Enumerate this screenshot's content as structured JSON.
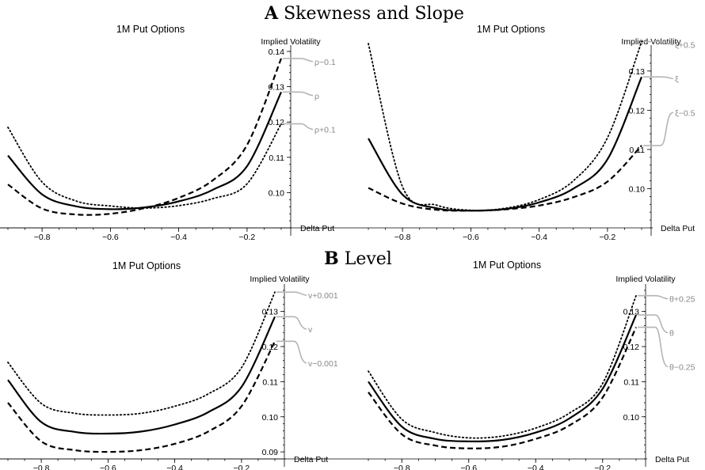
{
  "figure": {
    "section_a_letter": "A",
    "section_a_title": "Skewness and Slope",
    "section_b_letter": "B",
    "section_b_title": "Level"
  },
  "chart_data": [
    {
      "type": "line",
      "section": "A",
      "title": "1M Put Options",
      "xlabel": "Delta Put",
      "ylabel": "Implied Volatility",
      "xlim": [
        -0.9,
        -0.1
      ],
      "ylim": [
        0.09,
        0.14
      ],
      "xticks": [
        -0.8,
        -0.6,
        -0.4,
        -0.2
      ],
      "xtick_labels": [
        "−0.8",
        "−0.6",
        "−0.4",
        "−0.2"
      ],
      "yticks": [
        0.1,
        0.11,
        0.12,
        0.13,
        0.14
      ],
      "ytick_labels": [
        "0.10",
        "0.11",
        "0.12",
        "0.13",
        "0.14"
      ],
      "grid": false,
      "x": [
        -0.9,
        -0.8,
        -0.7,
        -0.6,
        -0.5,
        -0.4,
        -0.3,
        -0.2,
        -0.1
      ],
      "series": [
        {
          "name": "ρ−0.1",
          "style": "dashed",
          "values": [
            0.1023,
            0.0955,
            0.0938,
            0.094,
            0.0956,
            0.0985,
            0.1035,
            0.1135,
            0.138
          ]
        },
        {
          "name": "ρ",
          "style": "solid",
          "values": [
            0.1105,
            0.0995,
            0.0961,
            0.0953,
            0.0958,
            0.0975,
            0.1008,
            0.1075,
            0.1285
          ]
        },
        {
          "name": "ρ+0.1",
          "style": "dotted",
          "values": [
            0.1185,
            0.103,
            0.0976,
            0.0962,
            0.0956,
            0.0963,
            0.0983,
            0.1025,
            0.1195
          ]
        }
      ]
    },
    {
      "type": "line",
      "section": "A",
      "title": "1M Put Options",
      "xlabel": "Delta Put",
      "ylabel": "Implied Volatility",
      "xlim": [
        -0.9,
        -0.1
      ],
      "ylim": [
        0.09,
        0.135
      ],
      "xticks": [
        -0.8,
        -0.6,
        -0.4,
        -0.2
      ],
      "xtick_labels": [
        "−0.8",
        "−0.6",
        "−0.4",
        "−0.2"
      ],
      "yticks": [
        0.1,
        0.11,
        0.12,
        0.13
      ],
      "ytick_labels": [
        "0.10",
        "0.11",
        "0.12",
        "0.13"
      ],
      "grid": false,
      "x": [
        -0.9,
        -0.8,
        -0.7,
        -0.6,
        -0.5,
        -0.4,
        -0.3,
        -0.2,
        -0.1
      ],
      "series": [
        {
          "name": "ξ+0.5",
          "style": "dotted",
          "values": [
            0.137,
            0.1005,
            0.0958,
            0.0945,
            0.095,
            0.0972,
            0.102,
            0.113,
            0.1375
          ]
        },
        {
          "name": "ξ",
          "style": "solid",
          "values": [
            0.1128,
            0.0985,
            0.095,
            0.0944,
            0.0948,
            0.0965,
            0.1,
            0.1075,
            0.1285
          ]
        },
        {
          "name": "ξ−0.5",
          "style": "dashed",
          "values": [
            0.1002,
            0.0962,
            0.0946,
            0.0944,
            0.0947,
            0.0957,
            0.0978,
            0.1018,
            0.111
          ]
        }
      ]
    },
    {
      "type": "line",
      "section": "B",
      "title": "1M Put Options",
      "xlabel": "Delta Put",
      "ylabel": "Implied Volatility",
      "xlim": [
        -0.9,
        -0.1
      ],
      "ylim": [
        0.088,
        0.136
      ],
      "xticks": [
        -0.8,
        -0.6,
        -0.4,
        -0.2
      ],
      "xtick_labels": [
        "−0.8",
        "−0.6",
        "−0.4",
        "−0.2"
      ],
      "yticks": [
        0.09,
        0.1,
        0.11,
        0.12,
        0.13
      ],
      "ytick_labels": [
        "0.09",
        "0.10",
        "0.11",
        "0.12",
        "0.13"
      ],
      "grid": false,
      "x": [
        -0.9,
        -0.8,
        -0.7,
        -0.6,
        -0.5,
        -0.4,
        -0.3,
        -0.2,
        -0.1
      ],
      "series": [
        {
          "name": "v+0.001",
          "style": "dotted",
          "values": [
            0.1155,
            0.1038,
            0.101,
            0.1005,
            0.101,
            0.103,
            0.1065,
            0.114,
            0.1355
          ]
        },
        {
          "name": "v",
          "style": "solid",
          "values": [
            0.1105,
            0.0985,
            0.0957,
            0.0952,
            0.0958,
            0.0978,
            0.1013,
            0.1085,
            0.1285
          ]
        },
        {
          "name": "v−0.001",
          "style": "dashed",
          "values": [
            0.104,
            0.093,
            0.0905,
            0.09,
            0.0905,
            0.0923,
            0.0958,
            0.103,
            0.1215
          ]
        }
      ]
    },
    {
      "type": "line",
      "section": "B",
      "title": "1M Put Options",
      "xlabel": "Delta Put",
      "ylabel": "Implied Volatility",
      "xlim": [
        -0.9,
        -0.1
      ],
      "ylim": [
        0.088,
        0.136
      ],
      "xticks": [
        -0.8,
        -0.6,
        -0.4,
        -0.2
      ],
      "xtick_labels": [
        "−0.8",
        "−0.6",
        "−0.4",
        "−0.2"
      ],
      "yticks": [
        0.1,
        0.11,
        0.12,
        0.13
      ],
      "ytick_labels": [
        "0.10",
        "0.11",
        "0.12",
        "0.13"
      ],
      "grid": false,
      "x": [
        -0.9,
        -0.8,
        -0.7,
        -0.6,
        -0.5,
        -0.4,
        -0.3,
        -0.2,
        -0.1
      ],
      "series": [
        {
          "name": "θ+0.25",
          "style": "dotted",
          "values": [
            0.113,
            0.0993,
            0.0955,
            0.094,
            0.0945,
            0.0968,
            0.101,
            0.1095,
            0.1345
          ]
        },
        {
          "name": "θ",
          "style": "solid",
          "values": [
            0.11,
            0.0972,
            0.0937,
            0.093,
            0.0934,
            0.0955,
            0.0995,
            0.108,
            0.129
          ]
        },
        {
          "name": "θ−0.25",
          "style": "dashed",
          "values": [
            0.107,
            0.095,
            0.0918,
            0.091,
            0.0915,
            0.0937,
            0.0975,
            0.1055,
            0.1255
          ]
        }
      ]
    }
  ]
}
